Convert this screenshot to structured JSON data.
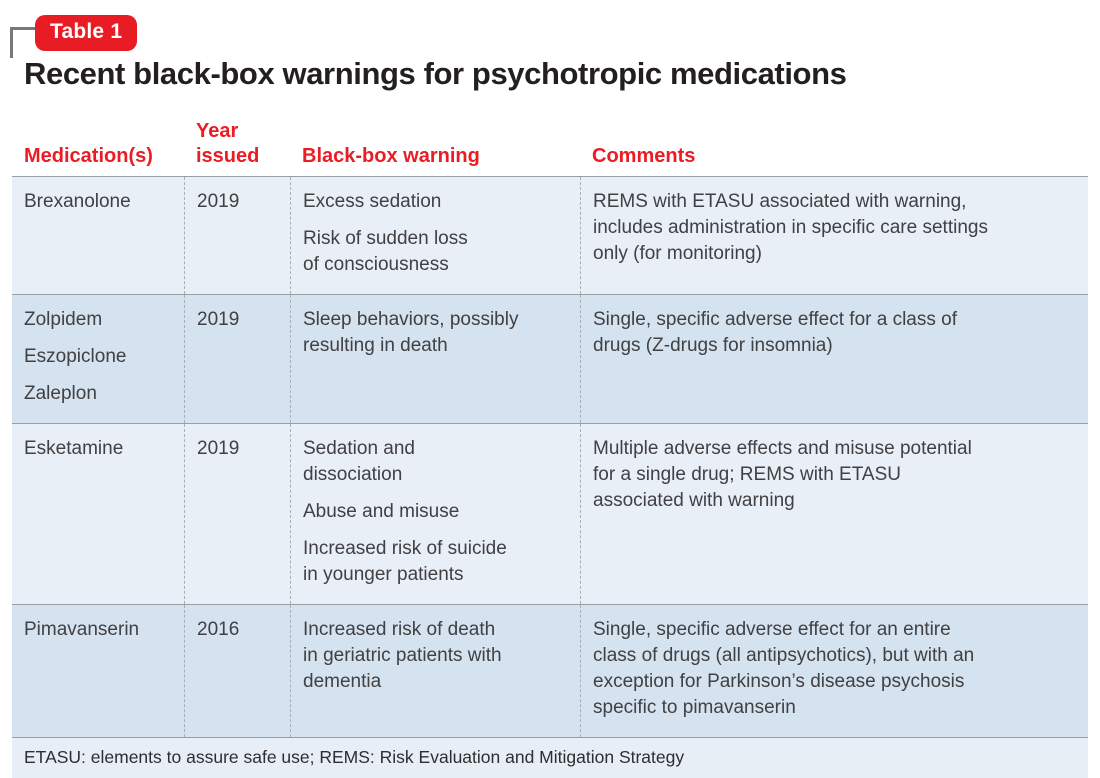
{
  "badge": {
    "label": "Table 1"
  },
  "title": "Recent black-box warnings for psychotropic medications",
  "colors": {
    "accent_red": "#ec1c24",
    "badge_red": "#e81c24",
    "row_light_blue": "#e9eff7",
    "row_dark_blue": "#d5e2ef",
    "footer_blue": "#e7eef6",
    "separator_gray": "#9b9fa3",
    "dashed_gray": "#a6aeb6",
    "title_black": "#231f20",
    "body_text": "#414042"
  },
  "table": {
    "headers": {
      "medication": "Medication(s)",
      "year": "Year\nissued",
      "warning": "Black-box warning",
      "comments": "Comments"
    },
    "rows": [
      {
        "medications": [
          "Brexanolone"
        ],
        "year": "2019",
        "warnings": [
          "Excess sedation",
          "Risk of sudden loss\nof consciousness"
        ],
        "comment": "REMS with ETASU associated with warning,\nincludes administration in specific care settings\nonly (for monitoring)"
      },
      {
        "medications": [
          "Zolpidem",
          "Eszopiclone",
          "Zaleplon"
        ],
        "year": "2019",
        "warnings": [
          "Sleep behaviors, possibly\nresulting in death"
        ],
        "comment": "Single, specific adverse effect for a class of\ndrugs (Z-drugs for insomnia)"
      },
      {
        "medications": [
          "Esketamine"
        ],
        "year": "2019",
        "warnings": [
          "Sedation and\ndissociation",
          "Abuse and misuse",
          "Increased risk of suicide\nin younger patients"
        ],
        "comment": "Multiple adverse effects and misuse potential\nfor a single drug; REMS with ETASU\nassociated with warning"
      },
      {
        "medications": [
          "Pimavanserin"
        ],
        "year": "2016",
        "warnings": [
          "Increased risk of death\nin geriatric patients with\ndementia"
        ],
        "comment": "Single, specific adverse effect for an entire\nclass of drugs (all antipsychotics), but with an\nexception for Parkinson’s disease psychosis\nspecific to pimavanserin"
      }
    ],
    "footnote": "ETASU: elements to assure safe use; REMS: Risk Evaluation and Mitigation Strategy"
  }
}
